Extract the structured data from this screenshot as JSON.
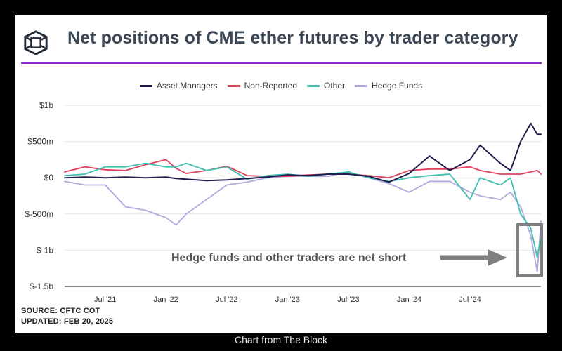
{
  "header": {
    "title": "Net positions of CME ether futures by trader category"
  },
  "footer": {
    "source": "SOURCE: CFTC COT",
    "updated": "UPDATED: FEB 20, 2025"
  },
  "credit": "Chart from The Block",
  "annotation": "Hedge funds and other traders are net short",
  "colors": {
    "title": "#3b4754",
    "rule": "#8b2fc9",
    "asset_managers": "#1f1f4f",
    "non_reported": "#e0405a",
    "other": "#3ebfb0",
    "hedge_funds": "#b3a8dd",
    "arrow": "#7f7f7f",
    "highlight_box": "#7f7f7f"
  },
  "chart_data": {
    "type": "line",
    "title": "Net positions of CME ether futures by trader category",
    "xlabel": "",
    "ylabel": "",
    "x_unit": "month",
    "x_tick_labels": [
      "Jul '21",
      "Jan '22",
      "Jul '22",
      "Jan '23",
      "Jul '23",
      "Jan '24",
      "Jul '24"
    ],
    "x_tick_dates": [
      "2021-07",
      "2022-01",
      "2022-07",
      "2023-01",
      "2023-07",
      "2024-01",
      "2024-07"
    ],
    "y_tick_labels": [
      "$1b",
      "$500m",
      "$0",
      "$-500m",
      "$-1b",
      "$-1.5b"
    ],
    "y_tick_values_m": [
      1000,
      500,
      0,
      -500,
      -1000,
      -1500
    ],
    "ylim_m": [
      -1500,
      1000
    ],
    "xlim": [
      "2021-03",
      "2025-02"
    ],
    "grid": "horizontal",
    "legend_position": "top",
    "x": [
      "2021-03",
      "2021-05",
      "2021-07",
      "2021-09",
      "2021-11",
      "2022-01",
      "2022-02",
      "2022-03",
      "2022-05",
      "2022-07",
      "2022-09",
      "2022-11",
      "2023-01",
      "2023-03",
      "2023-05",
      "2023-07",
      "2023-09",
      "2023-11",
      "2024-01",
      "2024-03",
      "2024-05",
      "2024-07",
      "2024-08",
      "2024-10",
      "2024-11",
      "2024-12",
      "2025-01",
      "2025-01-20",
      "2025-02"
    ],
    "series": [
      {
        "name": "Asset Managers",
        "values": [
          0,
          10,
          0,
          10,
          0,
          10,
          -10,
          -20,
          -40,
          -30,
          -10,
          10,
          40,
          30,
          50,
          50,
          20,
          -60,
          60,
          300,
          100,
          250,
          450,
          200,
          100,
          500,
          750,
          600,
          600
        ]
      },
      {
        "name": "Non-Reported",
        "values": [
          80,
          150,
          110,
          100,
          180,
          250,
          130,
          60,
          100,
          160,
          30,
          20,
          20,
          40,
          50,
          50,
          30,
          0,
          100,
          120,
          120,
          150,
          100,
          50,
          50,
          50,
          80,
          100,
          50
        ]
      },
      {
        "name": "Other",
        "values": [
          30,
          50,
          150,
          150,
          200,
          150,
          150,
          200,
          100,
          150,
          -20,
          30,
          50,
          20,
          50,
          80,
          0,
          -50,
          0,
          30,
          50,
          -300,
          0,
          -100,
          0,
          -500,
          -700,
          -1100,
          -800
        ]
      },
      {
        "name": "Hedge Funds",
        "values": [
          -50,
          -100,
          -100,
          -400,
          -450,
          -550,
          -650,
          -500,
          -300,
          -100,
          -60,
          0,
          20,
          20,
          20,
          80,
          0,
          -80,
          -200,
          -50,
          -50,
          -200,
          -250,
          -300,
          -200,
          -400,
          -800,
          -1300,
          -600
        ]
      }
    ]
  }
}
